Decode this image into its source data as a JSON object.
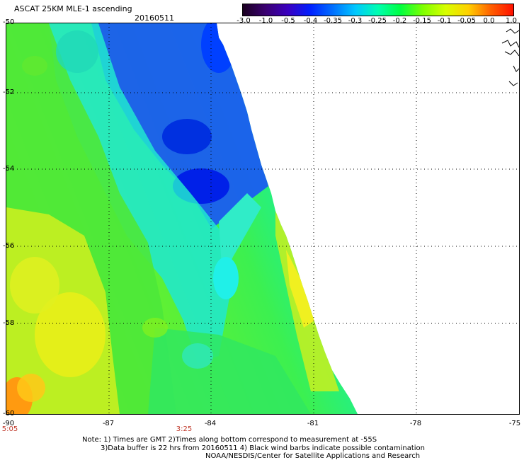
{
  "header": {
    "title": "ASCAT 25KM MLE-1 ascending",
    "date": "20160511"
  },
  "colorbar": {
    "labels": [
      "-3.0",
      "-1.0",
      "-0.5",
      "-0.4",
      "-0.35",
      "-0.3",
      "-0.25",
      "-0.2",
      "-0.15",
      "-0.1",
      "-0.05",
      "0.0",
      "1.0"
    ],
    "colors": [
      "#1a0020",
      "#3a0070",
      "#3a00c0",
      "#0020ff",
      "#0070ff",
      "#00c8ff",
      "#00ffb0",
      "#00ff40",
      "#80ff00",
      "#d8ff00",
      "#ffd000",
      "#ff6000",
      "#ff1000"
    ]
  },
  "map": {
    "lat_labels": [
      "-50",
      "-52",
      "-54",
      "-56",
      "-58",
      "-60"
    ],
    "lon_labels": [
      "-90",
      "-87",
      "-84",
      "-81",
      "-78",
      "-75"
    ],
    "time_labels": [
      "5:05",
      "3:25"
    ]
  },
  "footer": {
    "line1": "Note: 1) Times are GMT 2)Times along bottom correspond to measurement at -55S",
    "line2": "3)Data buffer is 22 hrs from 20160511 4) Black wind barbs indicate possible contamination",
    "line3": "NOAA/NESDIS/Center for Satellite Applications and Research"
  }
}
